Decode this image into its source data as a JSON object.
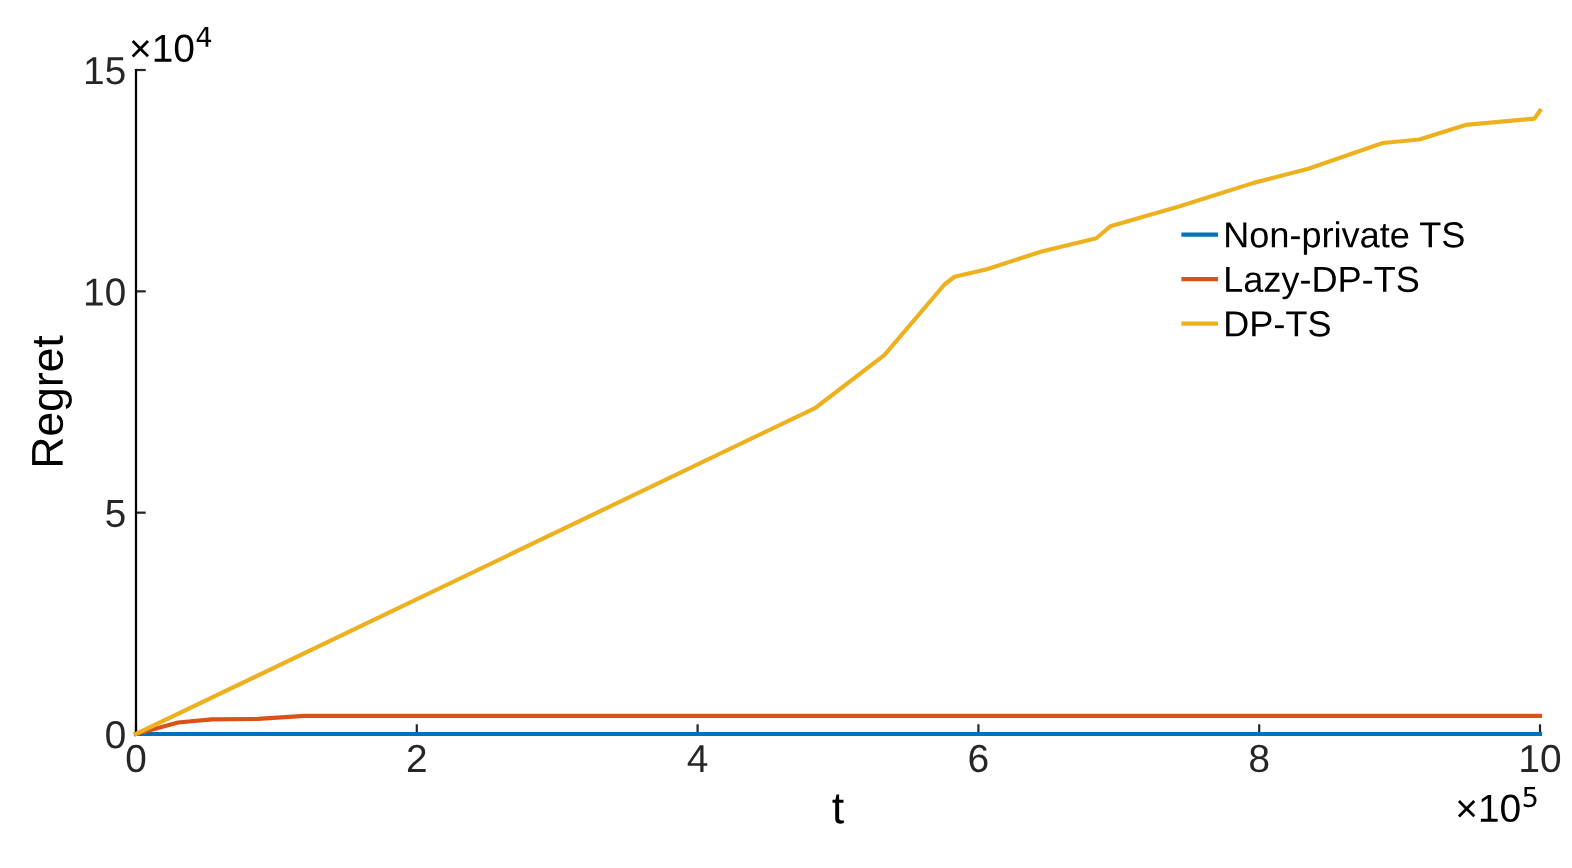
{
  "chart_data": {
    "type": "line",
    "xlabel": "t",
    "ylabel": "Regret",
    "xlim": [
      0,
      10
    ],
    "ylim": [
      0,
      15
    ],
    "xticks": [
      0,
      2,
      4,
      6,
      8,
      10
    ],
    "yticks": [
      0,
      5,
      10,
      15
    ],
    "annotations": [
      "×10$^{4}$",
      "×10$^{5}$"
    ],
    "legend": "right",
    "grid": false,
    "series": [
      {
        "name": "Non-private TS",
        "color": "#0072bd",
        "x": [
          0,
          10
        ],
        "values": [
          0,
          0
        ]
      },
      {
        "name": "Lazy-DP-TS",
        "color": "#d95319",
        "x": [
          0,
          0.3,
          0.54,
          0.87,
          1.2,
          10
        ],
        "values": [
          0,
          0.26,
          0.33,
          0.34,
          0.41,
          0.41
        ]
      },
      {
        "name": "DP-TS",
        "color": "#edb120",
        "x": [
          0,
          4.84,
          5.33,
          5.76,
          5.83,
          6.06,
          6.45,
          6.84,
          6.94,
          7.44,
          7.96,
          8.35,
          8.88,
          9.14,
          9.47,
          9.96,
          10
        ],
        "values": [
          0,
          7.37,
          8.56,
          10.16,
          10.33,
          10.5,
          10.9,
          11.2,
          11.47,
          11.93,
          12.45,
          12.77,
          13.35,
          13.43,
          13.76,
          13.9,
          14.08
        ]
      }
    ]
  }
}
